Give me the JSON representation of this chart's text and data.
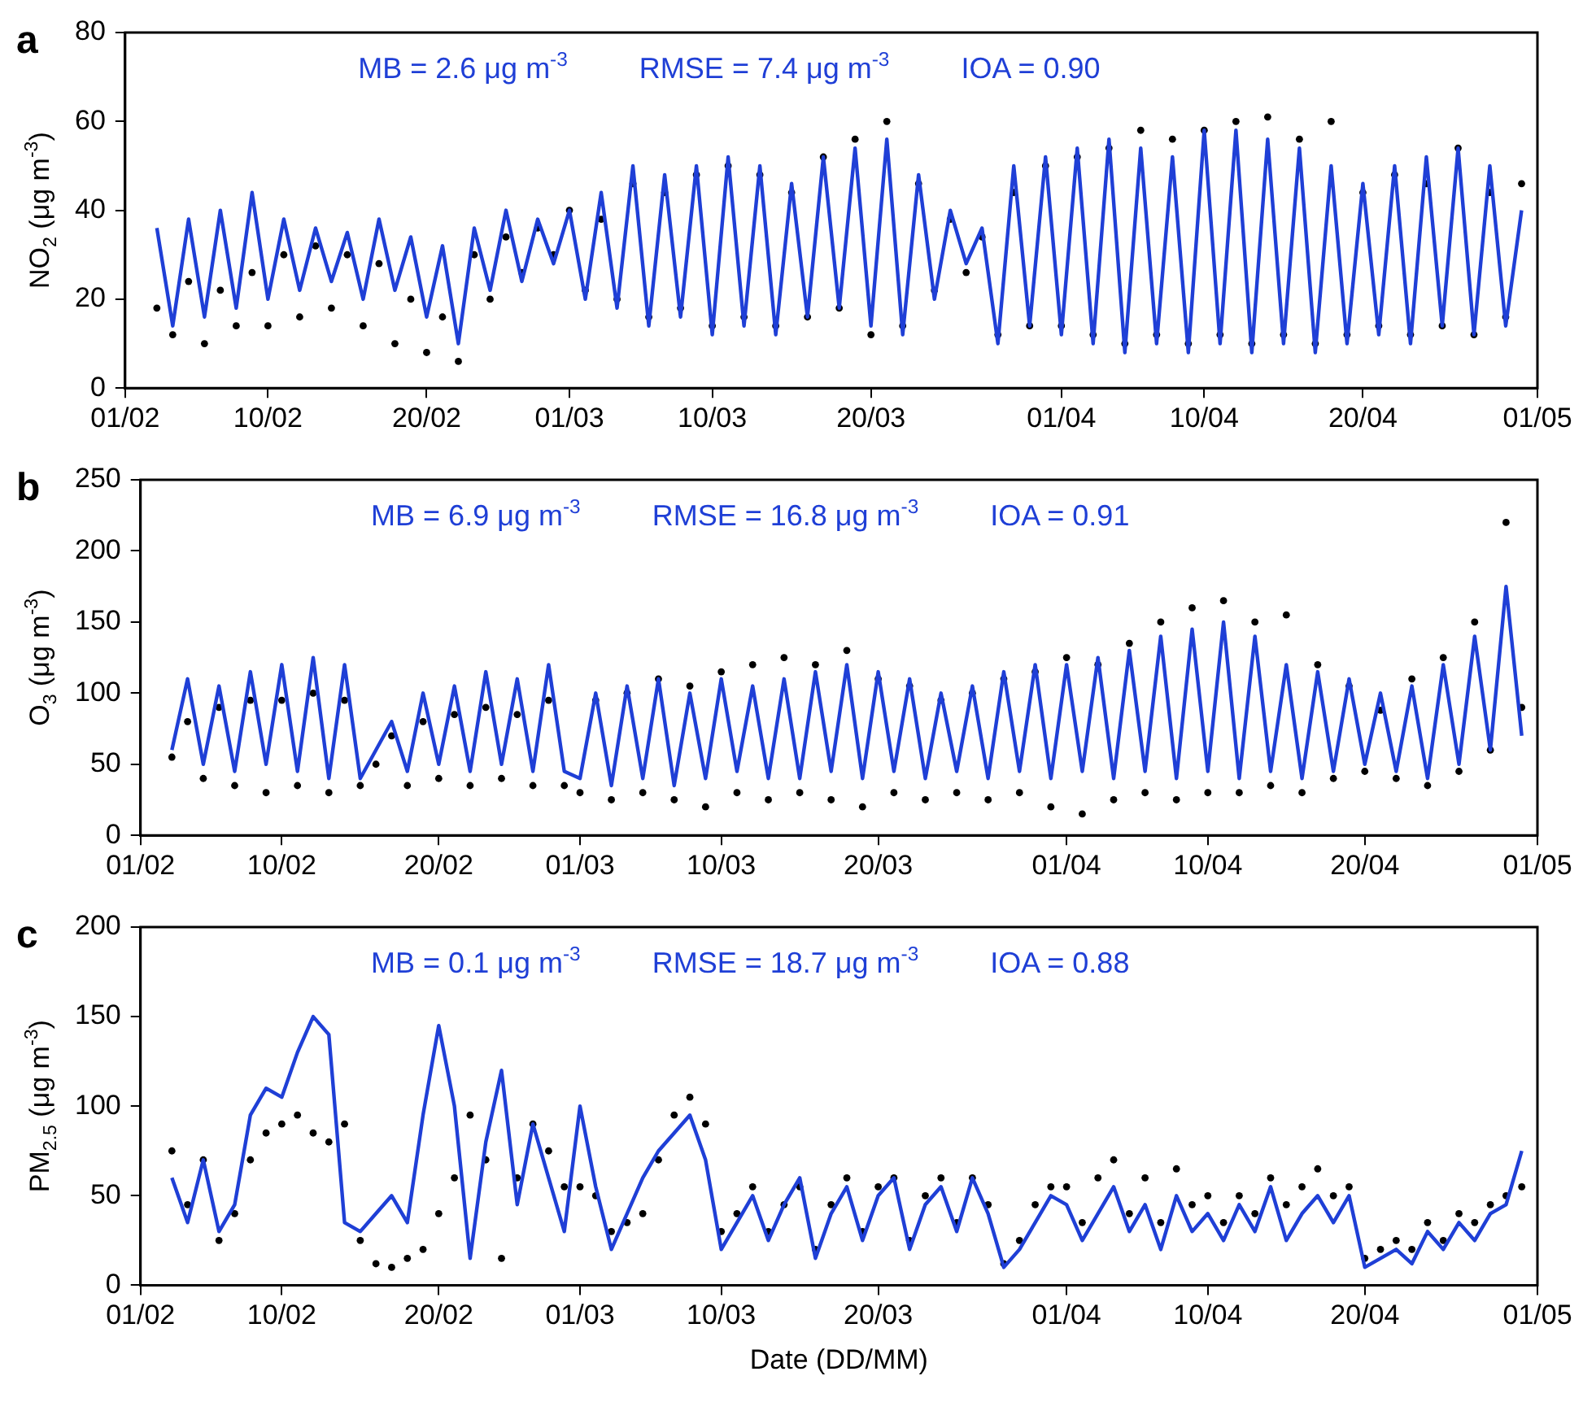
{
  "chart_data": [
    {
      "type": "line",
      "title": "a",
      "ylabel": "NO$_{2}$ (μg m$^{-3}$)",
      "annotations": [
        "MB = 2.6 μg m$^{-3}$",
        "RMSE = 7.4 μg m$^{-3}$",
        "IOA = 0.90"
      ],
      "xlim": [
        "--02-01",
        "--05-01"
      ],
      "xticks": [
        {
          "value": "--02-01",
          "label": "01/02"
        },
        {
          "value": "--02-10",
          "label": "10/02"
        },
        {
          "value": "--02-20",
          "label": "20/02"
        },
        {
          "value": "--03-01",
          "label": "01/03"
        },
        {
          "value": "--03-10",
          "label": "10/03"
        },
        {
          "value": "--03-20",
          "label": "20/03"
        },
        {
          "value": "--04-01",
          "label": "01/04"
        },
        {
          "value": "--04-10",
          "label": "10/04"
        },
        {
          "value": "--04-20",
          "label": "20/04"
        },
        {
          "value": "--05-01",
          "label": "01/05"
        }
      ],
      "ylim": [
        0,
        80
      ],
      "yticks": [
        0,
        20,
        40,
        60,
        80
      ],
      "grid": false,
      "legend": false,
      "x": [
        "--02-03",
        "--02-04",
        "--02-05",
        "--02-06",
        "--02-07",
        "--02-08",
        "--02-09",
        "--02-10",
        "--02-11",
        "--02-12",
        "--02-13",
        "--02-14",
        "--02-15",
        "--02-16",
        "--02-17",
        "--02-18",
        "--02-19",
        "--02-20",
        "--02-21",
        "--02-22",
        "--02-23",
        "--02-24",
        "--02-25",
        "--02-26",
        "--02-27",
        "--02-28",
        "--03-01",
        "--03-02",
        "--03-03",
        "--03-04",
        "--03-05",
        "--03-06",
        "--03-07",
        "--03-08",
        "--03-09",
        "--03-10",
        "--03-11",
        "--03-12",
        "--03-13",
        "--03-14",
        "--03-15",
        "--03-16",
        "--03-17",
        "--03-18",
        "--03-19",
        "--03-20",
        "--03-21",
        "--03-22",
        "--03-23",
        "--03-24",
        "--03-25",
        "--03-26",
        "--03-27",
        "--03-28",
        "--03-29",
        "--03-30",
        "--03-31",
        "--04-01",
        "--04-02",
        "--04-03",
        "--04-04",
        "--04-05",
        "--04-06",
        "--04-07",
        "--04-08",
        "--04-09",
        "--04-10",
        "--04-11",
        "--04-12",
        "--04-13",
        "--04-14",
        "--04-15",
        "--04-16",
        "--04-17",
        "--04-18",
        "--04-19",
        "--04-20",
        "--04-21",
        "--04-22",
        "--04-23",
        "--04-24",
        "--04-25",
        "--04-26",
        "--04-27",
        "--04-28",
        "--04-29",
        "--04-30"
      ],
      "series": [
        {
          "type": "scatter",
          "marker": "circle",
          "color": "#000000",
          "values": [
            18,
            12,
            24,
            10,
            22,
            14,
            26,
            14,
            30,
            16,
            32,
            18,
            30,
            14,
            28,
            10,
            20,
            8,
            16,
            6,
            30,
            20,
            34,
            26,
            36,
            30,
            40,
            22,
            38,
            20,
            46,
            16,
            44,
            18,
            48,
            14,
            50,
            16,
            48,
            14,
            44,
            16,
            52,
            18,
            56,
            12,
            60,
            14,
            46,
            22,
            38,
            26,
            34,
            12,
            44,
            14,
            50,
            14,
            52,
            12,
            54,
            10,
            58,
            12,
            56,
            10,
            58,
            12,
            60,
            10,
            61,
            12,
            56,
            10,
            60,
            12,
            44,
            14,
            48,
            12,
            46,
            14,
            54,
            12,
            44,
            16,
            46
          ]
        },
        {
          "type": "line",
          "color": "#1f3fd6",
          "values": [
            36,
            14,
            38,
            16,
            40,
            18,
            44,
            20,
            38,
            22,
            36,
            24,
            35,
            20,
            38,
            22,
            34,
            16,
            32,
            10,
            36,
            22,
            40,
            24,
            38,
            28,
            40,
            20,
            44,
            18,
            50,
            14,
            48,
            16,
            50,
            12,
            52,
            14,
            50,
            12,
            46,
            16,
            52,
            18,
            54,
            14,
            56,
            12,
            48,
            20,
            40,
            28,
            36,
            10,
            50,
            14,
            52,
            12,
            54,
            10,
            56,
            8,
            54,
            10,
            52,
            8,
            58,
            10,
            58,
            8,
            56,
            10,
            54,
            8,
            50,
            10,
            46,
            12,
            50,
            10,
            52,
            14,
            54,
            12,
            50,
            14,
            40
          ]
        }
      ]
    },
    {
      "type": "line",
      "title": "b",
      "ylabel": "O$_{3}$ (μg m$^{-3}$)",
      "annotations": [
        "MB = 6.9 μg m$^{-3}$",
        "RMSE = 16.8 μg m$^{-3}$",
        "IOA = 0.91"
      ],
      "xlim": [
        "--02-01",
        "--05-01"
      ],
      "xticks": [
        {
          "value": "--02-01",
          "label": "01/02"
        },
        {
          "value": "--02-10",
          "label": "10/02"
        },
        {
          "value": "--02-20",
          "label": "20/02"
        },
        {
          "value": "--03-01",
          "label": "01/03"
        },
        {
          "value": "--03-10",
          "label": "10/03"
        },
        {
          "value": "--03-20",
          "label": "20/03"
        },
        {
          "value": "--04-01",
          "label": "01/04"
        },
        {
          "value": "--04-10",
          "label": "10/04"
        },
        {
          "value": "--04-20",
          "label": "20/04"
        },
        {
          "value": "--05-01",
          "label": "01/05"
        }
      ],
      "ylim": [
        0,
        250
      ],
      "yticks": [
        0,
        50,
        100,
        150,
        200,
        250
      ],
      "grid": false,
      "legend": false,
      "x": [
        "--02-03",
        "--02-04",
        "--02-05",
        "--02-06",
        "--02-07",
        "--02-08",
        "--02-09",
        "--02-10",
        "--02-11",
        "--02-12",
        "--02-13",
        "--02-14",
        "--02-15",
        "--02-16",
        "--02-17",
        "--02-18",
        "--02-19",
        "--02-20",
        "--02-21",
        "--02-22",
        "--02-23",
        "--02-24",
        "--02-25",
        "--02-26",
        "--02-27",
        "--02-28",
        "--03-01",
        "--03-02",
        "--03-03",
        "--03-04",
        "--03-05",
        "--03-06",
        "--03-07",
        "--03-08",
        "--03-09",
        "--03-10",
        "--03-11",
        "--03-12",
        "--03-13",
        "--03-14",
        "--03-15",
        "--03-16",
        "--03-17",
        "--03-18",
        "--03-19",
        "--03-20",
        "--03-21",
        "--03-22",
        "--03-23",
        "--03-24",
        "--03-25",
        "--03-26",
        "--03-27",
        "--03-28",
        "--03-29",
        "--03-30",
        "--03-31",
        "--04-01",
        "--04-02",
        "--04-03",
        "--04-04",
        "--04-05",
        "--04-06",
        "--04-07",
        "--04-08",
        "--04-09",
        "--04-10",
        "--04-11",
        "--04-12",
        "--04-13",
        "--04-14",
        "--04-15",
        "--04-16",
        "--04-17",
        "--04-18",
        "--04-19",
        "--04-20",
        "--04-21",
        "--04-22",
        "--04-23",
        "--04-24",
        "--04-25",
        "--04-26",
        "--04-27",
        "--04-28",
        "--04-29",
        "--04-30"
      ],
      "series": [
        {
          "type": "scatter",
          "marker": "circle",
          "color": "#000000",
          "values": [
            55,
            80,
            40,
            90,
            35,
            95,
            30,
            95,
            35,
            100,
            30,
            95,
            35,
            50,
            70,
            35,
            80,
            40,
            85,
            35,
            90,
            40,
            85,
            35,
            95,
            35,
            30,
            95,
            25,
            100,
            30,
            110,
            25,
            105,
            20,
            115,
            30,
            120,
            25,
            125,
            30,
            120,
            25,
            130,
            20,
            110,
            30,
            105,
            25,
            95,
            30,
            100,
            25,
            110,
            30,
            115,
            20,
            125,
            15,
            120,
            25,
            135,
            30,
            150,
            25,
            160,
            30,
            165,
            30,
            150,
            35,
            155,
            30,
            120,
            40,
            105,
            45,
            88,
            40,
            110,
            35,
            125,
            45,
            150,
            60,
            220,
            90
          ]
        },
        {
          "type": "line",
          "color": "#1f3fd6",
          "values": [
            60,
            110,
            50,
            105,
            45,
            115,
            50,
            120,
            45,
            125,
            40,
            120,
            40,
            60,
            80,
            45,
            100,
            50,
            105,
            45,
            115,
            50,
            110,
            45,
            120,
            45,
            40,
            100,
            35,
            105,
            40,
            110,
            35,
            100,
            40,
            110,
            45,
            105,
            40,
            110,
            40,
            115,
            45,
            120,
            40,
            115,
            45,
            110,
            40,
            100,
            45,
            105,
            40,
            115,
            45,
            120,
            40,
            120,
            45,
            125,
            40,
            130,
            45,
            140,
            40,
            145,
            45,
            150,
            40,
            140,
            45,
            120,
            40,
            115,
            45,
            110,
            50,
            100,
            45,
            105,
            40,
            120,
            50,
            140,
            60,
            175,
            70
          ]
        }
      ]
    },
    {
      "type": "line",
      "title": "c",
      "xlabel": "Date (DD/MM)",
      "ylabel": "PM$_{2.5}$ (μg m$^{-3}$)",
      "annotations": [
        "MB = 0.1 μg m$^{-3}$",
        "RMSE = 18.7 μg m$^{-3}$",
        "IOA = 0.88"
      ],
      "xlim": [
        "--02-01",
        "--05-01"
      ],
      "xticks": [
        {
          "value": "--02-01",
          "label": "01/02"
        },
        {
          "value": "--02-10",
          "label": "10/02"
        },
        {
          "value": "--02-20",
          "label": "20/02"
        },
        {
          "value": "--03-01",
          "label": "01/03"
        },
        {
          "value": "--03-10",
          "label": "10/03"
        },
        {
          "value": "--03-20",
          "label": "20/03"
        },
        {
          "value": "--04-01",
          "label": "01/04"
        },
        {
          "value": "--04-10",
          "label": "10/04"
        },
        {
          "value": "--04-20",
          "label": "20/04"
        },
        {
          "value": "--05-01",
          "label": "01/05"
        }
      ],
      "ylim": [
        0,
        200
      ],
      "yticks": [
        0,
        50,
        100,
        150,
        200
      ],
      "grid": false,
      "legend": false,
      "x": [
        "--02-03",
        "--02-04",
        "--02-05",
        "--02-06",
        "--02-07",
        "--02-08",
        "--02-09",
        "--02-10",
        "--02-11",
        "--02-12",
        "--02-13",
        "--02-14",
        "--02-15",
        "--02-16",
        "--02-17",
        "--02-18",
        "--02-19",
        "--02-20",
        "--02-21",
        "--02-22",
        "--02-23",
        "--02-24",
        "--02-25",
        "--02-26",
        "--02-27",
        "--02-28",
        "--03-01",
        "--03-02",
        "--03-03",
        "--03-04",
        "--03-05",
        "--03-06",
        "--03-07",
        "--03-08",
        "--03-09",
        "--03-10",
        "--03-11",
        "--03-12",
        "--03-13",
        "--03-14",
        "--03-15",
        "--03-16",
        "--03-17",
        "--03-18",
        "--03-19",
        "--03-20",
        "--03-21",
        "--03-22",
        "--03-23",
        "--03-24",
        "--03-25",
        "--03-26",
        "--03-27",
        "--03-28",
        "--03-29",
        "--03-30",
        "--03-31",
        "--04-01",
        "--04-02",
        "--04-03",
        "--04-04",
        "--04-05",
        "--04-06",
        "--04-07",
        "--04-08",
        "--04-09",
        "--04-10",
        "--04-11",
        "--04-12",
        "--04-13",
        "--04-14",
        "--04-15",
        "--04-16",
        "--04-17",
        "--04-18",
        "--04-19",
        "--04-20",
        "--04-21",
        "--04-22",
        "--04-23",
        "--04-24",
        "--04-25",
        "--04-26",
        "--04-27",
        "--04-28",
        "--04-29",
        "--04-30"
      ],
      "series": [
        {
          "type": "scatter",
          "marker": "circle",
          "color": "#000000",
          "values": [
            75,
            45,
            70,
            25,
            40,
            70,
            85,
            90,
            95,
            85,
            80,
            90,
            25,
            12,
            10,
            15,
            20,
            40,
            60,
            95,
            70,
            15,
            60,
            90,
            75,
            55,
            55,
            50,
            30,
            35,
            40,
            70,
            95,
            105,
            90,
            30,
            40,
            55,
            30,
            45,
            55,
            20,
            45,
            60,
            30,
            55,
            60,
            25,
            50,
            60,
            35,
            60,
            45,
            12,
            25,
            45,
            55,
            55,
            35,
            60,
            70,
            40,
            60,
            35,
            65,
            45,
            50,
            35,
            50,
            40,
            60,
            45,
            55,
            65,
            50,
            55,
            15,
            20,
            25,
            20,
            35,
            25,
            40,
            35,
            45,
            50,
            55
          ]
        },
        {
          "type": "line",
          "color": "#1f3fd6",
          "values": [
            60,
            35,
            70,
            30,
            45,
            95,
            110,
            105,
            130,
            150,
            140,
            35,
            30,
            40,
            50,
            35,
            95,
            145,
            100,
            15,
            80,
            120,
            45,
            90,
            60,
            30,
            100,
            55,
            20,
            40,
            60,
            75,
            85,
            95,
            70,
            20,
            35,
            50,
            25,
            45,
            60,
            15,
            40,
            55,
            25,
            50,
            60,
            20,
            45,
            55,
            30,
            60,
            40,
            10,
            20,
            35,
            50,
            45,
            25,
            40,
            55,
            30,
            45,
            20,
            50,
            30,
            40,
            25,
            45,
            30,
            55,
            25,
            40,
            50,
            35,
            50,
            10,
            15,
            20,
            12,
            30,
            20,
            35,
            25,
            40,
            45,
            75
          ]
        }
      ]
    }
  ]
}
